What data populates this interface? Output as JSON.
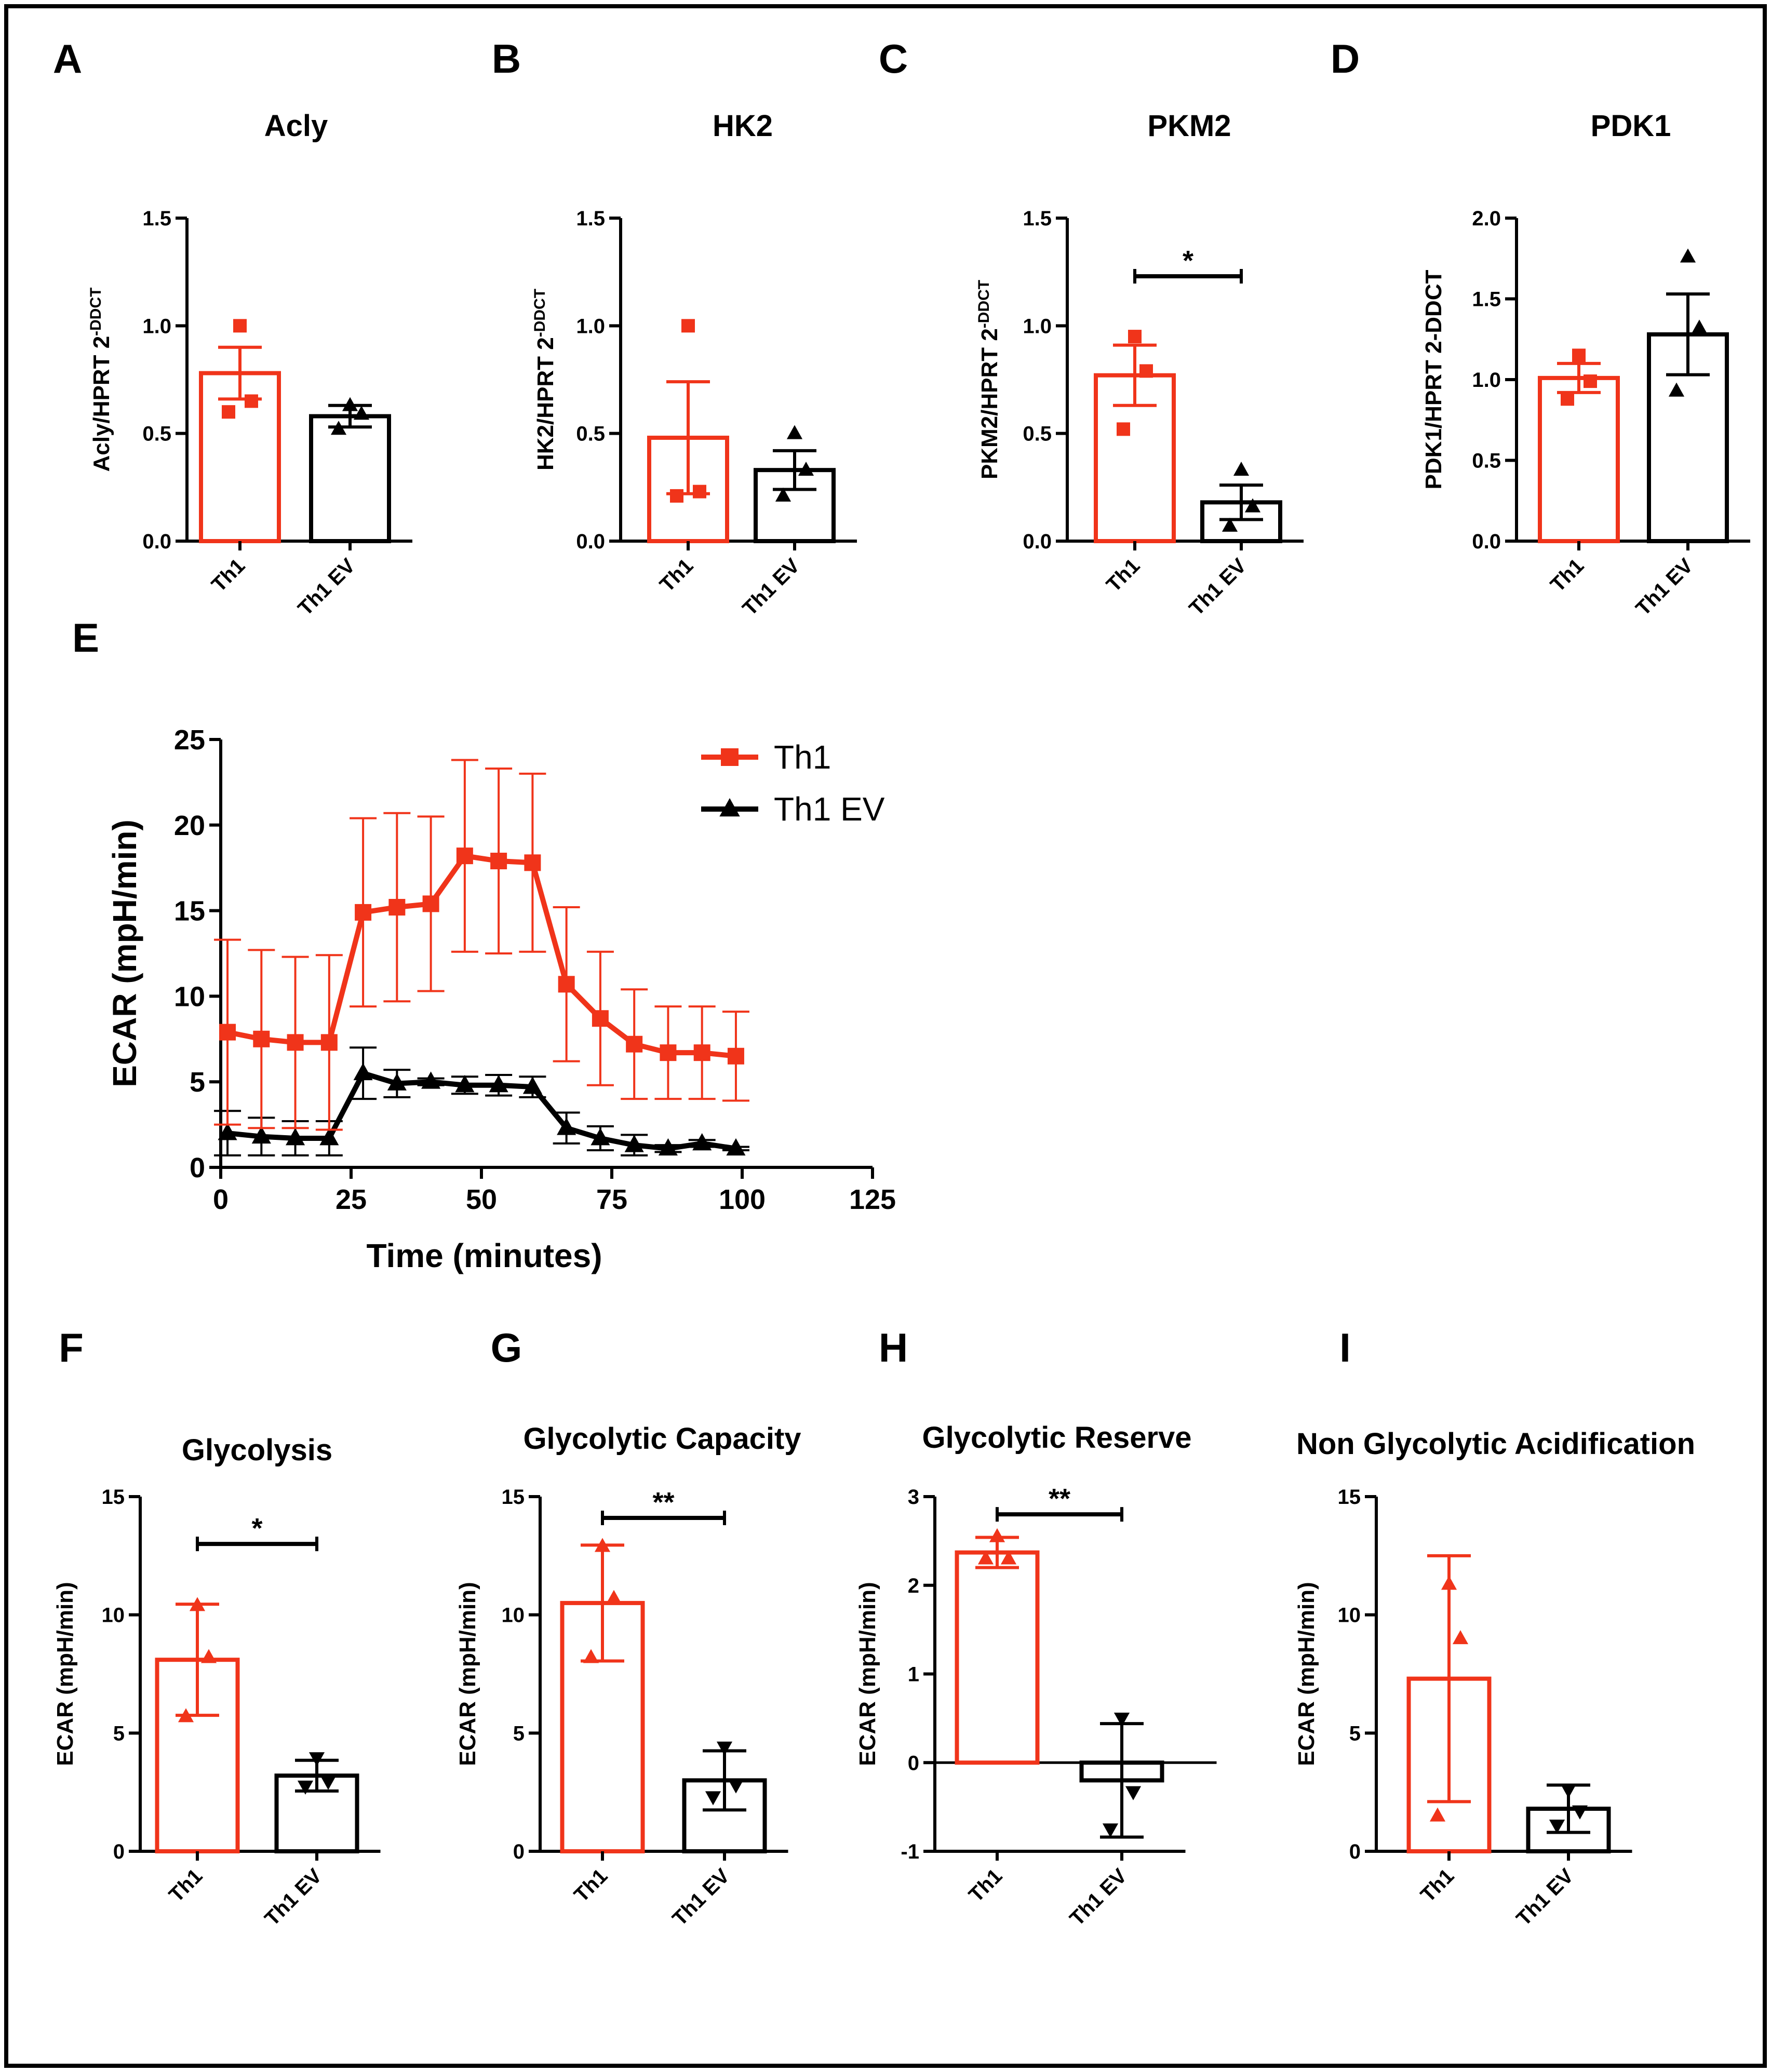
{
  "colors": {
    "red": "#f0341a",
    "black": "#000000"
  },
  "chart_data": [
    {
      "panel": "A",
      "type": "bar",
      "title": "Acly",
      "ylabel": "Acly/HPRT 2-DDCT",
      "ylabel_base": "Acly/HPRT 2",
      "ylabel_sup": "-DDCT",
      "categories": [
        "Th1",
        "Th1 EV"
      ],
      "ylim": [
        0,
        1.5
      ],
      "yticks": [
        0,
        0.5,
        1.0,
        1.5
      ],
      "yticklabels": [
        "0.0",
        "0.5",
        "1.0",
        "1.5"
      ],
      "series": [
        {
          "name": "Th1",
          "mean": 0.78,
          "sem": 0.12,
          "points": [
            {
              "y": 1.0,
              "m": "s"
            },
            {
              "y": 0.65,
              "m": "s"
            },
            {
              "y": 0.6,
              "m": "s"
            }
          ]
        },
        {
          "name": "Th1 EV",
          "mean": 0.58,
          "sem": 0.05,
          "points": [
            {
              "y": 0.63,
              "m": "t"
            },
            {
              "y": 0.59,
              "m": "t"
            },
            {
              "y": 0.52,
              "m": "t"
            }
          ]
        }
      ]
    },
    {
      "panel": "B",
      "type": "bar",
      "title": "HK2",
      "ylabel": "HK2/HPRT 2-DDCT",
      "ylabel_base": "HK2/HPRT 2",
      "ylabel_sup": "-DDCT",
      "categories": [
        "Th1",
        "Th1 EV"
      ],
      "ylim": [
        0,
        1.5
      ],
      "yticks": [
        0,
        0.5,
        1.0,
        1.5
      ],
      "yticklabels": [
        "0.0",
        "0.5",
        "1.0",
        "1.5"
      ],
      "series": [
        {
          "name": "Th1",
          "mean": 0.48,
          "sem": 0.26,
          "points": [
            {
              "y": 1.0,
              "m": "s"
            },
            {
              "y": 0.23,
              "m": "s"
            },
            {
              "y": 0.21,
              "m": "s"
            }
          ]
        },
        {
          "name": "Th1 EV",
          "mean": 0.33,
          "sem": 0.09,
          "points": [
            {
              "y": 0.5,
              "m": "t"
            },
            {
              "y": 0.33,
              "m": "t"
            },
            {
              "y": 0.21,
              "m": "t"
            }
          ]
        }
      ]
    },
    {
      "panel": "C",
      "type": "bar",
      "title": "PKM2",
      "ylabel": "PKM2/HPRT 2-DDCT",
      "ylabel_base": "PKM2/HPRT 2",
      "ylabel_sup": "-DDCT",
      "categories": [
        "Th1",
        "Th1 EV"
      ],
      "ylim": [
        0,
        1.5
      ],
      "yticks": [
        0,
        0.5,
        1.0,
        1.5
      ],
      "yticklabels": [
        "0.0",
        "0.5",
        "1.0",
        "1.5"
      ],
      "significance": {
        "label": "*",
        "y": 1.23
      },
      "series": [
        {
          "name": "Th1",
          "mean": 0.77,
          "sem": 0.14,
          "points": [
            {
              "y": 0.95,
              "m": "s"
            },
            {
              "y": 0.79,
              "m": "s"
            },
            {
              "y": 0.52,
              "m": "s"
            }
          ]
        },
        {
          "name": "Th1 EV",
          "mean": 0.18,
          "sem": 0.08,
          "points": [
            {
              "y": 0.33,
              "m": "t"
            },
            {
              "y": 0.16,
              "m": "t"
            },
            {
              "y": 0.07,
              "m": "t"
            }
          ]
        }
      ]
    },
    {
      "panel": "D",
      "type": "bar",
      "title": "PDK1",
      "ylabel": "PDK1/HPRT 2-DDCT",
      "ylabel_base": "PDK1/HPRT 2-DDCT",
      "ylabel_sup": "",
      "categories": [
        "Th1",
        "Th1 EV"
      ],
      "ylim": [
        0,
        2.0
      ],
      "yticks": [
        0,
        0.5,
        1.0,
        1.5,
        2.0
      ],
      "yticklabels": [
        "0.0",
        "0.5",
        "1.0",
        "1.5",
        "2.0"
      ],
      "series": [
        {
          "name": "Th1",
          "mean": 1.01,
          "sem": 0.09,
          "points": [
            {
              "y": 1.15,
              "m": "s"
            },
            {
              "y": 0.99,
              "m": "s"
            },
            {
              "y": 0.88,
              "m": "s"
            }
          ]
        },
        {
          "name": "Th1 EV",
          "mean": 1.28,
          "sem": 0.25,
          "points": [
            {
              "y": 1.76,
              "m": "t"
            },
            {
              "y": 1.32,
              "m": "t"
            },
            {
              "y": 0.93,
              "m": "t"
            }
          ]
        }
      ]
    },
    {
      "panel": "E",
      "type": "line",
      "title": "",
      "xlabel": "Time (minutes)",
      "ylabel": "ECAR (mpH/min)",
      "xlim": [
        0,
        125
      ],
      "ylim": [
        0,
        25
      ],
      "xticks": [
        0,
        25,
        50,
        75,
        100,
        125
      ],
      "yticks": [
        0,
        5,
        10,
        15,
        20,
        25
      ],
      "x": [
        1.3,
        7.8,
        14.3,
        20.8,
        27.3,
        33.8,
        40.3,
        46.8,
        53.3,
        59.8,
        66.3,
        72.8,
        79.3,
        85.8,
        92.3,
        98.8
      ],
      "series": [
        {
          "name": "Th1",
          "marker": "square",
          "y": [
            7.9,
            7.5,
            7.3,
            7.3,
            14.9,
            15.2,
            15.4,
            18.2,
            17.9,
            17.8,
            10.7,
            8.7,
            7.2,
            6.7,
            6.7,
            6.5
          ],
          "err": [
            5.4,
            5.2,
            5.0,
            5.1,
            5.5,
            5.5,
            5.1,
            5.6,
            5.4,
            5.2,
            4.5,
            3.9,
            3.2,
            2.7,
            2.7,
            2.6
          ]
        },
        {
          "name": "Th1 EV",
          "marker": "triangle",
          "y": [
            2.0,
            1.8,
            1.7,
            1.7,
            5.5,
            4.9,
            5.0,
            4.8,
            4.8,
            4.7,
            2.3,
            1.7,
            1.3,
            1.1,
            1.4,
            1.1
          ],
          "err": [
            1.3,
            1.1,
            1.0,
            1.0,
            1.5,
            0.8,
            0.2,
            0.5,
            0.6,
            0.6,
            0.9,
            0.7,
            0.6,
            0.2,
            0.2,
            0.1
          ]
        }
      ]
    },
    {
      "panel": "F",
      "type": "bar",
      "title": "Glycolysis",
      "ylabel": "ECAR (mpH/min)",
      "categories": [
        "Th1",
        "Th1 EV"
      ],
      "ylim": [
        0,
        15
      ],
      "yticks": [
        0,
        5,
        10,
        15
      ],
      "yticklabels": [
        "0",
        "5",
        "10",
        "15"
      ],
      "significance": {
        "label": "*",
        "y": 13.0
      },
      "series": [
        {
          "name": "Th1",
          "mean": 8.1,
          "sd": 2.35,
          "points": [
            {
              "y": 10.4,
              "m": "t"
            },
            {
              "y": 8.2,
              "m": "t"
            },
            {
              "y": 5.7,
              "m": "t"
            }
          ]
        },
        {
          "name": "Th1 EV",
          "mean": 3.2,
          "sd": 0.65,
          "points": [
            {
              "y": 3.95,
              "m": "v"
            },
            {
              "y": 2.95,
              "m": "v"
            },
            {
              "y": 2.75,
              "m": "v"
            }
          ]
        }
      ]
    },
    {
      "panel": "G",
      "type": "bar",
      "title": "Glycolytic Capacity",
      "ylabel": "ECAR (mpH/min)",
      "categories": [
        "Th1",
        "Th1 EV"
      ],
      "ylim": [
        0,
        15
      ],
      "yticks": [
        0,
        5,
        10,
        15
      ],
      "yticklabels": [
        "0",
        "5",
        "10",
        "15"
      ],
      "significance": {
        "label": "**",
        "y": 14.1
      },
      "series": [
        {
          "name": "Th1",
          "mean": 10.5,
          "sd": 2.45,
          "points": [
            {
              "y": 12.9,
              "m": "t"
            },
            {
              "y": 10.7,
              "m": "t"
            },
            {
              "y": 8.2,
              "m": "t"
            }
          ]
        },
        {
          "name": "Th1 EV",
          "mean": 3.0,
          "sd": 1.25,
          "points": [
            {
              "y": 4.4,
              "m": "v"
            },
            {
              "y": 2.8,
              "m": "v"
            },
            {
              "y": 2.3,
              "m": "v"
            }
          ]
        }
      ]
    },
    {
      "panel": "H",
      "type": "bar",
      "title": "Glycolytic Reserve",
      "ylabel": "ECAR (mpH/min)",
      "categories": [
        "Th1",
        "Th1 EV"
      ],
      "ylim": [
        -1,
        3
      ],
      "yticks": [
        -1,
        0,
        1,
        2,
        3
      ],
      "yticklabels": [
        "-1",
        "0",
        "1",
        "2",
        "3"
      ],
      "zero_line": true,
      "significance": {
        "label": "**",
        "y": 2.8
      },
      "series": [
        {
          "name": "Th1",
          "mean": 2.37,
          "sd": 0.17,
          "points": [
            {
              "y": 2.55,
              "m": "t"
            },
            {
              "y": 2.3,
              "m": "t"
            },
            {
              "y": 2.3,
              "m": "t"
            }
          ]
        },
        {
          "name": "Th1 EV",
          "mean": -0.2,
          "sd": 0.64,
          "points": [
            {
              "y": 0.5,
              "m": "v"
            },
            {
              "y": -0.33,
              "m": "v"
            },
            {
              "y": -0.75,
              "m": "v"
            }
          ]
        }
      ]
    },
    {
      "panel": "I",
      "type": "bar",
      "title": "Non Glycolytic Acidification",
      "ylabel": "ECAR (mpH/min)",
      "categories": [
        "Th1",
        "Th1 EV"
      ],
      "ylim": [
        0,
        15
      ],
      "yticks": [
        0,
        5,
        10,
        15
      ],
      "yticklabels": [
        "0",
        "5",
        "10",
        "15"
      ],
      "series": [
        {
          "name": "Th1",
          "mean": 7.3,
          "sd": 5.2,
          "points": [
            {
              "y": 11.3,
              "m": "t"
            },
            {
              "y": 9.0,
              "m": "t"
            },
            {
              "y": 1.5,
              "m": "t"
            }
          ]
        },
        {
          "name": "Th1 EV",
          "mean": 1.8,
          "sd": 1.0,
          "points": [
            {
              "y": 2.6,
              "m": "v"
            },
            {
              "y": 1.7,
              "m": "v"
            },
            {
              "y": 1.1,
              "m": "v"
            }
          ]
        }
      ]
    }
  ]
}
